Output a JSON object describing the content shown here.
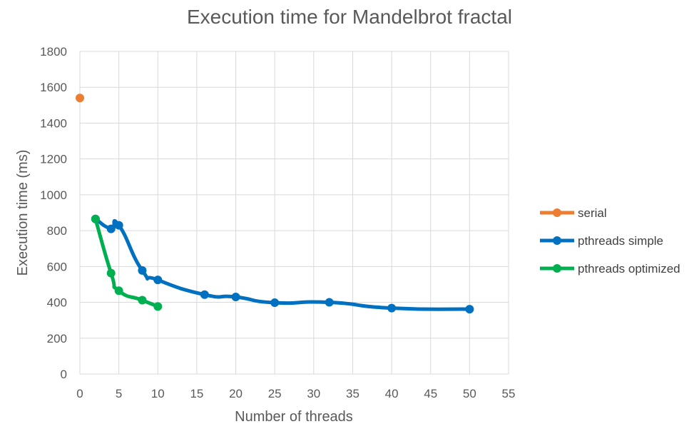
{
  "chart_data": {
    "type": "line",
    "title": "Execution time for Mandelbrot fractal",
    "xlabel": "Number of threads",
    "ylabel": "Execution time (ms)",
    "xlim": [
      0,
      55
    ],
    "ylim": [
      0,
      1800
    ],
    "xticks": [
      0,
      5,
      10,
      15,
      20,
      25,
      30,
      35,
      40,
      45,
      50,
      55
    ],
    "yticks": [
      0,
      200,
      400,
      600,
      800,
      1000,
      1200,
      1400,
      1600,
      1800
    ],
    "grid": true,
    "smooth": true,
    "legend_position": "right",
    "series": [
      {
        "name": "serial",
        "color": "#ed7d31",
        "points": [
          [
            0,
            1540
          ]
        ]
      },
      {
        "name": "pthreads simple",
        "color": "#0070c0",
        "points": [
          [
            2,
            865
          ],
          [
            4,
            810
          ],
          [
            5,
            830
          ],
          [
            8,
            578
          ],
          [
            10,
            525
          ],
          [
            16,
            443
          ],
          [
            20,
            430
          ],
          [
            25,
            398
          ],
          [
            32,
            400
          ],
          [
            40,
            368
          ],
          [
            50,
            362
          ]
        ]
      },
      {
        "name": "pthreads optimized",
        "color": "#00b050",
        "points": [
          [
            2,
            865
          ],
          [
            4,
            563
          ],
          [
            5,
            465
          ],
          [
            8,
            412
          ],
          [
            10,
            377
          ]
        ]
      }
    ]
  }
}
